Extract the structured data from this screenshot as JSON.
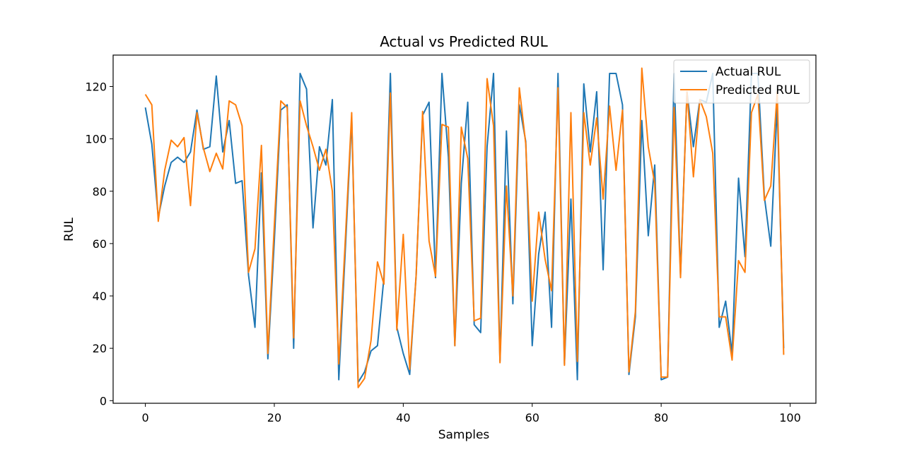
{
  "chart_data": {
    "type": "line",
    "title": "Actual vs Predicted RUL",
    "xlabel": "Samples",
    "ylabel": "RUL",
    "xlim": [
      -5,
      104
    ],
    "ylim": [
      -1,
      132
    ],
    "xticks": [
      0,
      20,
      40,
      60,
      80,
      100
    ],
    "yticks": [
      0,
      20,
      40,
      60,
      80,
      100,
      120
    ],
    "grid": false,
    "legend": "top-right",
    "x": [
      0,
      1,
      2,
      3,
      4,
      5,
      6,
      7,
      8,
      9,
      10,
      11,
      12,
      13,
      14,
      15,
      16,
      17,
      18,
      19,
      20,
      21,
      22,
      23,
      24,
      25,
      26,
      27,
      28,
      29,
      30,
      31,
      32,
      33,
      34,
      35,
      36,
      37,
      38,
      39,
      40,
      41,
      42,
      43,
      44,
      45,
      46,
      47,
      48,
      49,
      50,
      51,
      52,
      53,
      54,
      55,
      56,
      57,
      58,
      59,
      60,
      61,
      62,
      63,
      64,
      65,
      66,
      67,
      68,
      69,
      70,
      71,
      72,
      73,
      74,
      75,
      76,
      77,
      78,
      79,
      80,
      81,
      82,
      83,
      84,
      85,
      86,
      87,
      88,
      89,
      90,
      91,
      92,
      93,
      94,
      95,
      96,
      97,
      98,
      99
    ],
    "series": [
      {
        "name": "Actual RUL",
        "color": "#1f77b4",
        "values": [
          112,
          98,
          70,
          82,
          91,
          93,
          91,
          95,
          111,
          96,
          97,
          124,
          95,
          107,
          83,
          84,
          48,
          28,
          87,
          16,
          61,
          111,
          113,
          20,
          125,
          119,
          66,
          97,
          90,
          115,
          8,
          57,
          108,
          7,
          11,
          19,
          21,
          47,
          125,
          28,
          18,
          10,
          48,
          109,
          114,
          47,
          125,
          93,
          21,
          83,
          114,
          29,
          26,
          97,
          125,
          15,
          103,
          37,
          113,
          99,
          21,
          56,
          72,
          28,
          125,
          14,
          77,
          8,
          121,
          95,
          118,
          50,
          125,
          125,
          113,
          10,
          32,
          107,
          63,
          90,
          8,
          9,
          125,
          48,
          118,
          97,
          115,
          114,
          125,
          28,
          38,
          18,
          85,
          55,
          125,
          125,
          78,
          59,
          113,
          20
        ]
      },
      {
        "name": "Predicted RUL",
        "color": "#ff7f0e",
        "values": [
          117,
          113,
          68.5,
          88,
          99.5,
          97,
          100.5,
          74.5,
          110,
          96.5,
          87.5,
          94.5,
          88.5,
          114.5,
          113,
          105,
          49,
          58,
          97.5,
          18,
          67,
          114.5,
          112,
          24,
          114.5,
          105,
          97,
          88,
          96,
          80,
          14,
          61,
          110,
          5,
          8.5,
          23,
          53,
          44.5,
          117.5,
          27,
          63.5,
          12,
          48,
          110.5,
          61,
          47.5,
          105.5,
          104.5,
          21,
          104.5,
          92.5,
          30.5,
          31.5,
          123,
          105,
          14.5,
          82,
          40,
          119.5,
          98,
          38,
          72,
          54,
          42,
          119.5,
          13.5,
          110,
          15,
          110,
          90,
          108,
          77,
          112.5,
          88,
          111,
          11,
          34,
          127,
          97,
          83,
          9,
          9,
          112,
          47,
          118,
          85.5,
          115,
          108.5,
          94.5,
          32,
          32,
          15.5,
          53.5,
          49,
          110,
          117,
          76.5,
          82,
          118,
          17.5
        ]
      }
    ]
  }
}
